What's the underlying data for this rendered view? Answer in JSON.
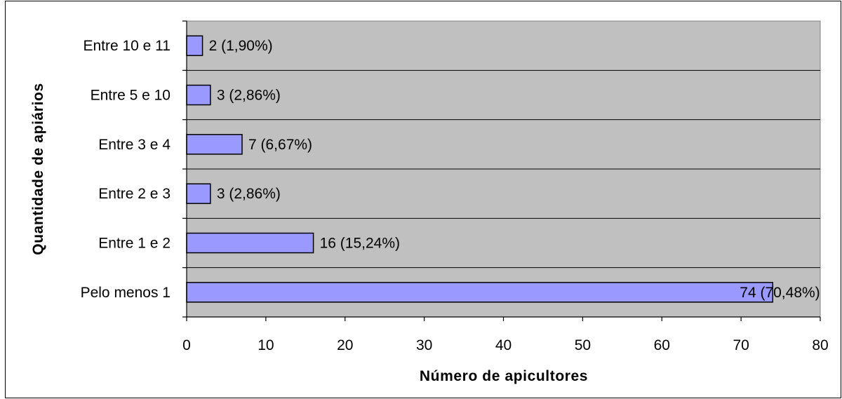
{
  "chart_data": {
    "type": "bar",
    "orientation": "horizontal",
    "title": "",
    "xlabel": "Número de apicultores",
    "ylabel": "Quantidade de apiários",
    "categories": [
      "Pelo menos 1",
      "Entre 1 e 2",
      "Entre 2 e 3",
      "Entre 3 e 4",
      "Entre 5 e 10",
      "Entre 10 e 11"
    ],
    "values": [
      74,
      16,
      3,
      7,
      3,
      2
    ],
    "data_labels": [
      "74 (70,48%)",
      "16 (15,24%)",
      "3 (2,86%)",
      "7 (6,67%)",
      "3 (2,86%)",
      "2 (1,90%)"
    ],
    "xlim": [
      0,
      80
    ],
    "x_ticks": [
      0,
      10,
      20,
      30,
      40,
      50,
      60,
      70,
      80
    ],
    "grid": "horizontal",
    "legend": "none",
    "colors": {
      "bar_fill": "#9999ff",
      "bar_stroke": "#000000",
      "plot_background": "#c0c0c0",
      "gridline": "#000000"
    }
  }
}
